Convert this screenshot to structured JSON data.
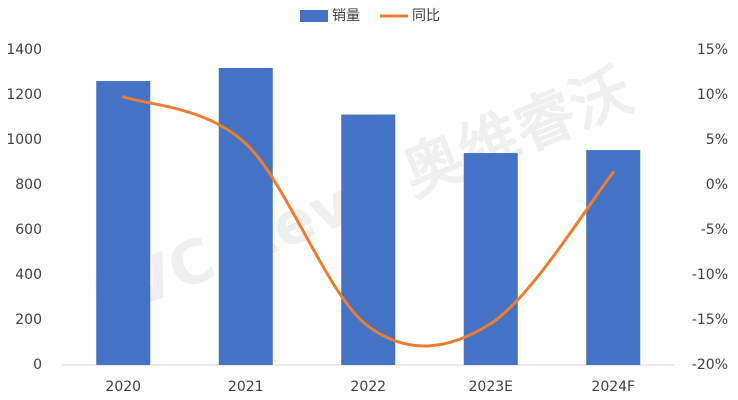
{
  "chart_data": {
    "type": "bar-line",
    "categories": [
      "2020",
      "2021",
      "2022",
      "2023E",
      "2024F"
    ],
    "series": [
      {
        "name": "销量",
        "type": "bar",
        "color": "#4472c4",
        "values": [
          1262,
          1320,
          1113,
          942,
          955
        ]
      },
      {
        "name": "同比",
        "type": "line",
        "axis": "y2",
        "color": "#ed7d31",
        "smooth": true,
        "values": [
          9.8,
          4.6,
          -15.7,
          -15.4,
          1.4
        ]
      }
    ],
    "ylim": [
      0,
      1400
    ],
    "yticks": [
      0,
      200,
      400,
      600,
      800,
      1000,
      1200,
      1400
    ],
    "y2lim": [
      -20,
      15
    ],
    "y2ticks": [
      {
        "value": -20,
        "label": "-20%"
      },
      {
        "value": -15,
        "label": "-15%"
      },
      {
        "value": -10,
        "label": "-10%"
      },
      {
        "value": -5,
        "label": "-5%"
      },
      {
        "value": 0,
        "label": "0%"
      },
      {
        "value": 5,
        "label": "5%"
      },
      {
        "value": 10,
        "label": "10%"
      },
      {
        "value": 15,
        "label": "15%"
      }
    ],
    "grid": false,
    "legend": "top",
    "watermark": "AVC Revo 奥维睿沃"
  }
}
